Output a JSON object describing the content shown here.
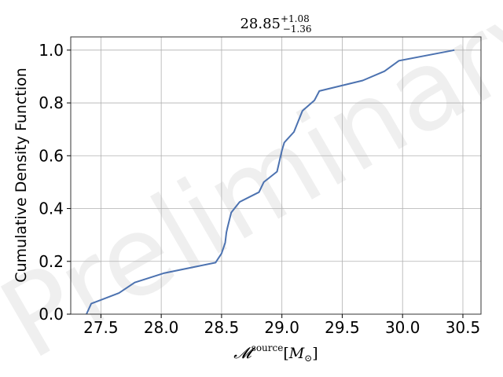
{
  "chart_data": {
    "type": "line",
    "title": {
      "base": "28.85",
      "sup": "+1.08",
      "sub": "−1.36"
    },
    "xlabel": {
      "symbol": "𝓜",
      "sup": "source",
      "unit_open": "[",
      "unit_symbol": "M",
      "unit_sub": "⊙",
      "unit_close": "]"
    },
    "ylabel": "Cumulative Density Function",
    "xlim": [
      27.25,
      30.65
    ],
    "ylim": [
      0.0,
      1.05
    ],
    "xticks": [
      "27.5",
      "28.0",
      "28.5",
      "29.0",
      "29.5",
      "30.0",
      "30.5"
    ],
    "yticks": [
      "0.0",
      "0.2",
      "0.4",
      "0.6",
      "0.8",
      "1.0"
    ],
    "grid": true,
    "color": "#4c72b0",
    "watermark": "Preliminary",
    "series": [
      {
        "x": [
          27.38,
          27.42,
          27.65,
          27.78,
          28.02,
          28.45,
          28.5,
          28.53,
          28.54,
          28.55,
          28.58,
          28.65,
          28.81,
          28.85,
          28.96,
          28.98,
          29.0,
          29.02,
          29.04,
          29.1,
          29.17,
          29.27,
          29.31,
          29.67,
          29.85,
          29.97,
          30.43
        ],
        "y": [
          0.0,
          0.04,
          0.08,
          0.12,
          0.155,
          0.195,
          0.23,
          0.27,
          0.31,
          0.33,
          0.385,
          0.425,
          0.462,
          0.5,
          0.54,
          0.58,
          0.62,
          0.65,
          0.66,
          0.69,
          0.77,
          0.81,
          0.845,
          0.885,
          0.92,
          0.96,
          1.0
        ]
      }
    ]
  }
}
